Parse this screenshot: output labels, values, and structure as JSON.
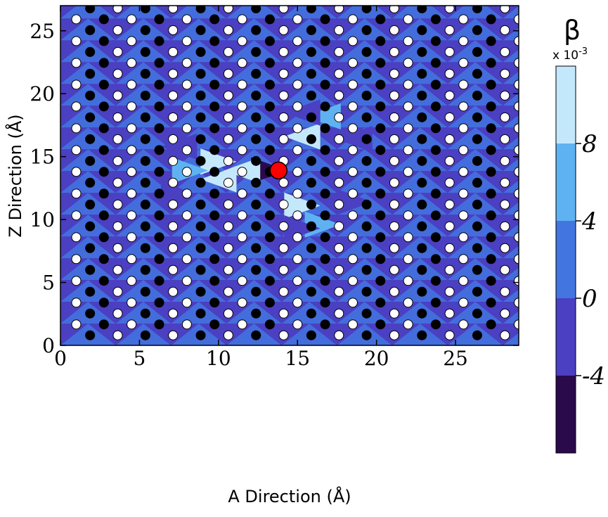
{
  "chart_data": {
    "type": "heatmap",
    "xlabel": "A Direction (Å)",
    "ylabel": "Z Direction (Å)",
    "xlim": [
      0,
      29
    ],
    "ylim": [
      0,
      27
    ],
    "x_ticks": [
      0,
      5,
      10,
      15,
      20,
      25
    ],
    "y_ticks": [
      0,
      5,
      10,
      15,
      20,
      25
    ],
    "x_tick_labels": [
      "0",
      "5",
      "10",
      "15",
      "20",
      "25"
    ],
    "y_tick_labels": [
      "0",
      "5",
      "10",
      "15",
      "20",
      "25"
    ],
    "colorbar": {
      "title": "β",
      "multiplier": "x 10",
      "multiplier_exp": "-3",
      "ticks": [
        -4,
        0,
        4,
        8
      ],
      "tick_labels": [
        "-4",
        "0",
        "4",
        "8"
      ],
      "levels": [
        -8,
        -4,
        0,
        4,
        8,
        12
      ],
      "colors": [
        "#2a0a4a",
        "#4b3fc2",
        "#4275e0",
        "#5fb2f2",
        "#c4e8fb"
      ]
    },
    "lattice": {
      "row_spacing": 0.866,
      "col_spacing": 1.75,
      "row_shift": 0.875,
      "open_atoms": "white circles",
      "filled_atoms": "black circles"
    },
    "defect": {
      "x": 13.8,
      "y": 13.9,
      "color": "#ff0000"
    },
    "perturbed_regions": [
      {
        "x": 13.2,
        "y": 13.9,
        "value": -6
      },
      {
        "x": 11.5,
        "y": 13.9,
        "value": 10
      },
      {
        "x": 10.0,
        "y": 14.6,
        "value": 10
      },
      {
        "x": 10.0,
        "y": 13.2,
        "value": 10
      },
      {
        "x": 8.2,
        "y": 13.9,
        "value": 6
      },
      {
        "x": 15.3,
        "y": 16.6,
        "value": 10
      },
      {
        "x": 15.3,
        "y": 11.1,
        "value": 10
      },
      {
        "x": 16.6,
        "y": 18.2,
        "value": 6
      },
      {
        "x": 16.6,
        "y": 9.6,
        "value": 6
      },
      {
        "x": 15.3,
        "y": 18.5,
        "value": -2
      },
      {
        "x": 15.3,
        "y": 9.3,
        "value": -2
      },
      {
        "x": 18.6,
        "y": 16.4,
        "value": -2
      },
      {
        "x": 18.6,
        "y": 11.4,
        "value": -2
      },
      {
        "x": 7.5,
        "y": 15.8,
        "value": -2
      },
      {
        "x": 7.5,
        "y": 12.0,
        "value": -2
      }
    ]
  }
}
